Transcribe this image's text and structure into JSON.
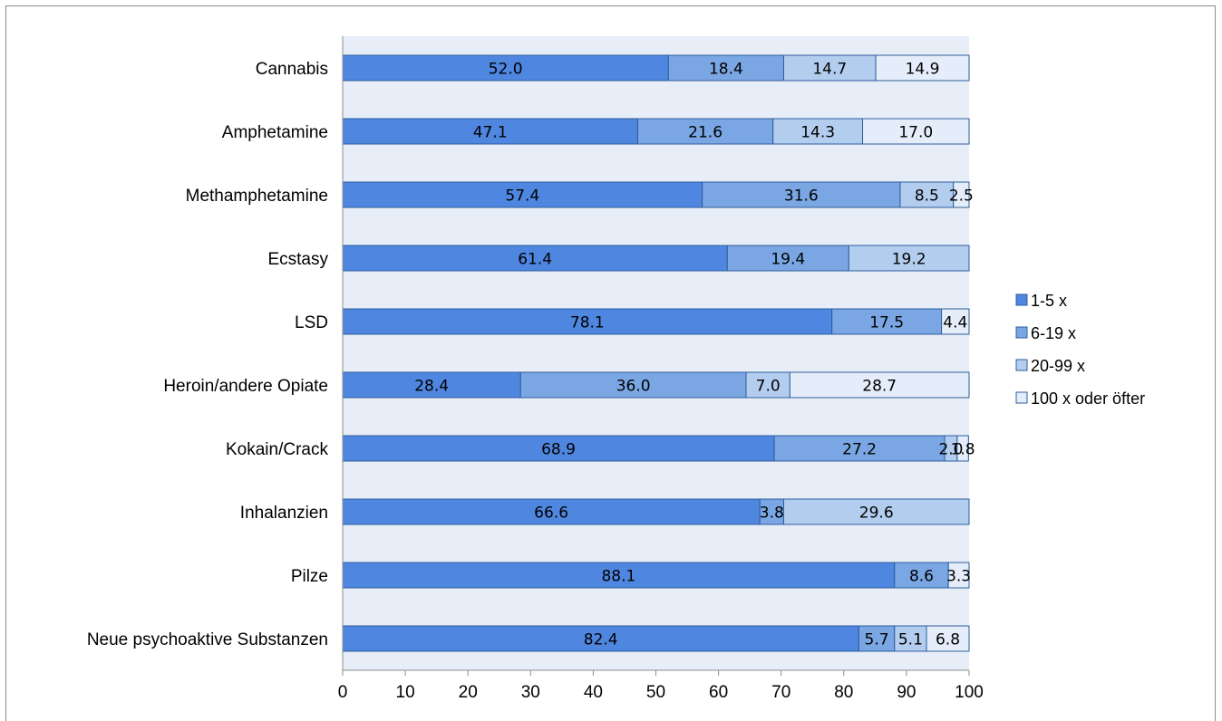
{
  "chart_data": {
    "type": "bar",
    "orientation": "horizontal",
    "stacked": true,
    "title": "",
    "xlabel": "",
    "ylabel": "",
    "xlim": [
      0,
      100
    ],
    "x_ticks": [
      0,
      10,
      20,
      30,
      40,
      50,
      60,
      70,
      80,
      90,
      100
    ],
    "grid": false,
    "legend_position": "right",
    "categories": [
      "Cannabis",
      "Amphetamine",
      "Methamphetamine",
      "Ecstasy",
      "LSD",
      "Heroin/andere Opiate",
      "Kokain/Crack",
      "Inhalanzien",
      "Pilze",
      "Neue psychoaktive Substanzen"
    ],
    "series": [
      {
        "name": "1-5 x",
        "color": "#4f86e0",
        "values": [
          52.0,
          47.1,
          57.4,
          61.4,
          78.1,
          28.4,
          68.9,
          66.6,
          88.1,
          82.4
        ]
      },
      {
        "name": "6-19 x",
        "color": "#7aa6e3",
        "values": [
          18.4,
          21.6,
          31.6,
          19.4,
          17.5,
          36.0,
          27.2,
          3.8,
          8.6,
          5.7
        ]
      },
      {
        "name": "20-99 x",
        "color": "#b3cdef",
        "values": [
          14.7,
          14.3,
          8.5,
          19.2,
          null,
          7.0,
          2.0,
          29.6,
          null,
          5.1
        ]
      },
      {
        "name": "100 x oder öfter",
        "color": "#e4edf9",
        "values": [
          14.9,
          17.0,
          2.5,
          null,
          4.4,
          28.7,
          1.8,
          null,
          3.3,
          6.8
        ]
      }
    ],
    "data_labels": [
      [
        "52.0",
        "18.4",
        "14.7",
        "14.9"
      ],
      [
        "47.1",
        "21.6",
        "14.3",
        "17.0"
      ],
      [
        "57.4",
        "31.6",
        "8.5",
        "2.5"
      ],
      [
        "61.4",
        "19.4",
        "19.2",
        ""
      ],
      [
        "78.1",
        "17.5",
        "",
        "4.4"
      ],
      [
        "28.4",
        "36.0",
        "7.0",
        "28.7"
      ],
      [
        "68.9",
        "27.2",
        "2.0",
        "1.8"
      ],
      [
        "66.6",
        "3.8",
        "29.6",
        ""
      ],
      [
        "88.1",
        "8.6",
        "",
        "3.3"
      ],
      [
        "82.4",
        "5.7",
        "5.1",
        "6.8"
      ]
    ],
    "plot_background": "#e8eef8",
    "bar_outline": "#2e5d9c"
  }
}
